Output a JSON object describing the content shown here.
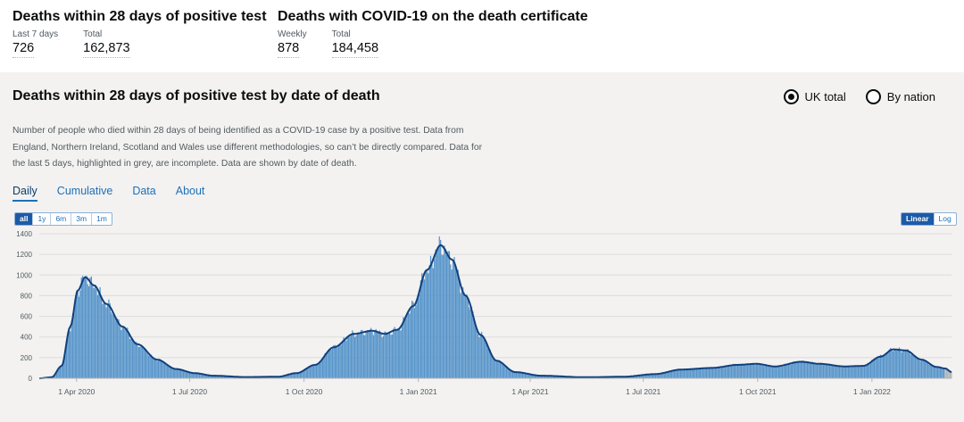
{
  "headline": {
    "left": {
      "title": "Deaths within 28 days of positive test",
      "metrics": [
        {
          "label": "Last 7 days",
          "value": "726"
        },
        {
          "label": "Total",
          "value": "162,873"
        }
      ]
    },
    "right": {
      "title": "Deaths with COVID-19 on the death certificate",
      "metrics": [
        {
          "label": "Weekly",
          "value": "878"
        },
        {
          "label": "Total",
          "value": "184,458"
        }
      ]
    }
  },
  "card": {
    "title": "Deaths within 28 days of positive test by date of death",
    "radios": [
      {
        "label": "UK total",
        "selected": true
      },
      {
        "label": "By nation",
        "selected": false
      }
    ],
    "description": "Number of people who died within 28 days of being identified as a COVID-19 case by a positive test. Data from England, Northern Ireland, Scotland and Wales use different methodologies, so can’t be directly compared. Data for the last 5 days, highlighted in grey, are incomplete. Data are shown by date of death.",
    "tabs": [
      {
        "label": "Daily",
        "active": true
      },
      {
        "label": "Cumulative",
        "active": false
      },
      {
        "label": "Data",
        "active": false
      },
      {
        "label": "About",
        "active": false
      }
    ],
    "range_buttons": [
      {
        "label": "all",
        "active": true
      },
      {
        "label": "1y",
        "active": false
      },
      {
        "label": "6m",
        "active": false
      },
      {
        "label": "3m",
        "active": false
      },
      {
        "label": "1m",
        "active": false
      }
    ],
    "scale_buttons": [
      {
        "label": "Linear",
        "active": true
      },
      {
        "label": "Log",
        "active": false
      }
    ]
  },
  "chart_data": {
    "type": "bar",
    "title": "Deaths within 28 days of positive test by date of death",
    "ylim": [
      0,
      1400
    ],
    "y_ticks": [
      "0",
      "200",
      "400",
      "600",
      "800",
      "1000",
      "1200",
      "1400"
    ],
    "x_ticks": [
      "1 Apr 2020",
      "1 Jul 2020",
      "1 Oct 2020",
      "1 Jan 2021",
      "1 Apr 2021",
      "1 Jul 2021",
      "1 Oct 2021",
      "1 Jan 2022"
    ],
    "x_start": "2020-03-02",
    "x_end": "2022-03-06",
    "grid": true,
    "colors": {
      "bars": "#5694ca",
      "average_line": "#12407c",
      "incomplete_bars": "#b1b4b6",
      "grid": "#dcdcdc"
    },
    "incomplete_last_days": 5,
    "series": [
      {
        "name": "Daily deaths",
        "anchors": [
          {
            "date": "2020-03-02",
            "value": 0
          },
          {
            "date": "2020-03-12",
            "value": 10
          },
          {
            "date": "2020-03-20",
            "value": 120
          },
          {
            "date": "2020-03-27",
            "value": 500
          },
          {
            "date": "2020-04-02",
            "value": 850
          },
          {
            "date": "2020-04-08",
            "value": 980
          },
          {
            "date": "2020-04-15",
            "value": 900
          },
          {
            "date": "2020-04-25",
            "value": 720
          },
          {
            "date": "2020-05-08",
            "value": 500
          },
          {
            "date": "2020-05-20",
            "value": 330
          },
          {
            "date": "2020-06-05",
            "value": 180
          },
          {
            "date": "2020-06-20",
            "value": 90
          },
          {
            "date": "2020-07-05",
            "value": 50
          },
          {
            "date": "2020-07-20",
            "value": 25
          },
          {
            "date": "2020-08-15",
            "value": 12
          },
          {
            "date": "2020-09-10",
            "value": 15
          },
          {
            "date": "2020-09-25",
            "value": 50
          },
          {
            "date": "2020-10-10",
            "value": 130
          },
          {
            "date": "2020-10-25",
            "value": 300
          },
          {
            "date": "2020-11-10",
            "value": 430
          },
          {
            "date": "2020-11-25",
            "value": 460
          },
          {
            "date": "2020-12-05",
            "value": 430
          },
          {
            "date": "2020-12-15",
            "value": 470
          },
          {
            "date": "2020-12-28",
            "value": 700
          },
          {
            "date": "2021-01-08",
            "value": 1050
          },
          {
            "date": "2021-01-19",
            "value": 1290
          },
          {
            "date": "2021-01-28",
            "value": 1150
          },
          {
            "date": "2021-02-08",
            "value": 800
          },
          {
            "date": "2021-02-20",
            "value": 420
          },
          {
            "date": "2021-03-05",
            "value": 170
          },
          {
            "date": "2021-03-20",
            "value": 60
          },
          {
            "date": "2021-04-10",
            "value": 25
          },
          {
            "date": "2021-05-15",
            "value": 10
          },
          {
            "date": "2021-06-15",
            "value": 15
          },
          {
            "date": "2021-07-10",
            "value": 40
          },
          {
            "date": "2021-08-01",
            "value": 85
          },
          {
            "date": "2021-08-25",
            "value": 100
          },
          {
            "date": "2021-09-15",
            "value": 130
          },
          {
            "date": "2021-09-30",
            "value": 140
          },
          {
            "date": "2021-10-15",
            "value": 115
          },
          {
            "date": "2021-11-05",
            "value": 160
          },
          {
            "date": "2021-11-20",
            "value": 140
          },
          {
            "date": "2021-12-10",
            "value": 115
          },
          {
            "date": "2021-12-25",
            "value": 120
          },
          {
            "date": "2022-01-08",
            "value": 210
          },
          {
            "date": "2022-01-18",
            "value": 280
          },
          {
            "date": "2022-01-28",
            "value": 270
          },
          {
            "date": "2022-02-10",
            "value": 180
          },
          {
            "date": "2022-02-22",
            "value": 110
          },
          {
            "date": "2022-03-01",
            "value": 95
          },
          {
            "date": "2022-03-06",
            "value": 60
          }
        ]
      }
    ]
  }
}
